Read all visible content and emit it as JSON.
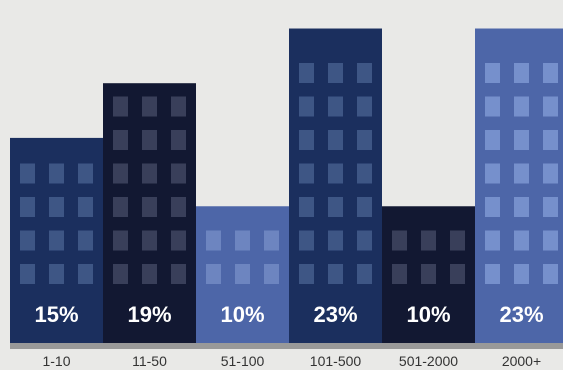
{
  "chart_data": {
    "type": "bar",
    "title": "",
    "xlabel": "",
    "ylabel": "",
    "categories": [
      "1-10",
      "11-50",
      "51-100",
      "101-500",
      "501-2000",
      "2000+"
    ],
    "values": [
      15,
      19,
      10,
      23,
      10,
      23
    ],
    "value_labels": [
      "15%",
      "19%",
      "10%",
      "23%",
      "10%",
      "23%"
    ],
    "unit": "%",
    "ylim": [
      0,
      24.5
    ],
    "grid": false,
    "legend": "none",
    "style": "buildings with windows",
    "colors": [
      "#1b2f5e",
      "#121832",
      "#4d66a8",
      "#1b2f5e",
      "#121832",
      "#4d66a8"
    ],
    "window_colors": [
      "#3e5685",
      "#393f5a",
      "#6d85c0",
      "#3e5685",
      "#393f5a",
      "#7690cc"
    ],
    "baseline_color": "#999999"
  }
}
